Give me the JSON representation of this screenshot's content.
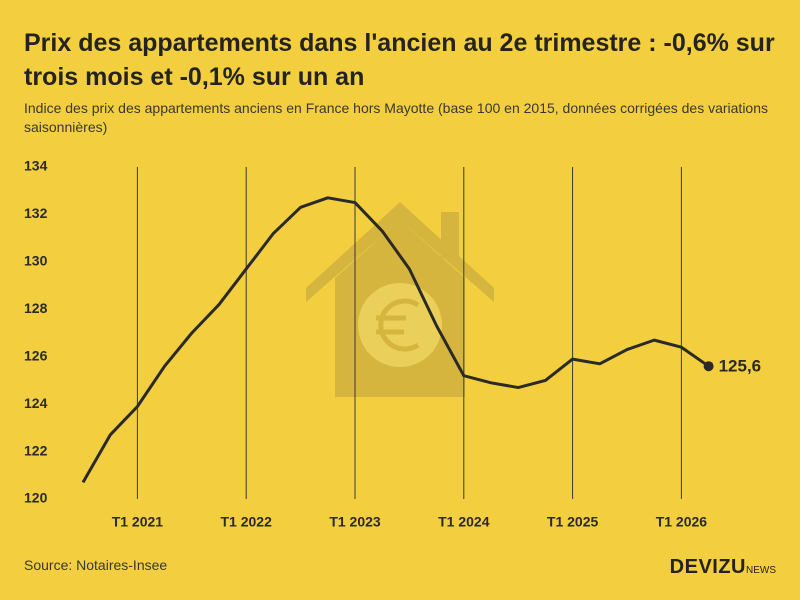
{
  "chart_data": {
    "type": "line",
    "title": "Prix des appartements dans l'ancien au 2e trimestre : -0,6% sur trois mois et -0,1% sur un an",
    "subtitle": "Indice des prix des appartements anciens en France hors Mayotte (base 100 en 2015, données corrigées des variations saisonnières)",
    "source": "Source: Notaires-Insee",
    "brand": "DEVIZU",
    "brand_suffix": "NEWS",
    "categories": [
      null,
      null,
      "T1 2021",
      null,
      null,
      null,
      "T1 2022",
      null,
      null,
      null,
      "T1 2023",
      null,
      null,
      null,
      "T1 2024",
      null,
      null,
      null,
      "T1 2025",
      null,
      null,
      null,
      "T1 2026",
      null
    ],
    "series": [
      {
        "name": "Indice",
        "color": "#2b2a26",
        "values": [
          120.7,
          122.7,
          123.9,
          125.6,
          127.0,
          128.2,
          129.7,
          131.2,
          132.3,
          132.7,
          132.5,
          131.3,
          129.7,
          127.3,
          125.2,
          124.9,
          124.7,
          125.0,
          125.9,
          125.7,
          126.3,
          126.7,
          126.4,
          125.6
        ],
        "value_labels": [
          null,
          null,
          null,
          null,
          null,
          null,
          null,
          null,
          null,
          null,
          null,
          null,
          null,
          null,
          null,
          null,
          null,
          null,
          null,
          null,
          null,
          null,
          null,
          "125,6"
        ]
      }
    ],
    "ylim": [
      120,
      134
    ],
    "yticks": [
      120,
      122,
      124,
      126,
      128,
      130,
      132,
      134
    ],
    "grid": "x"
  }
}
